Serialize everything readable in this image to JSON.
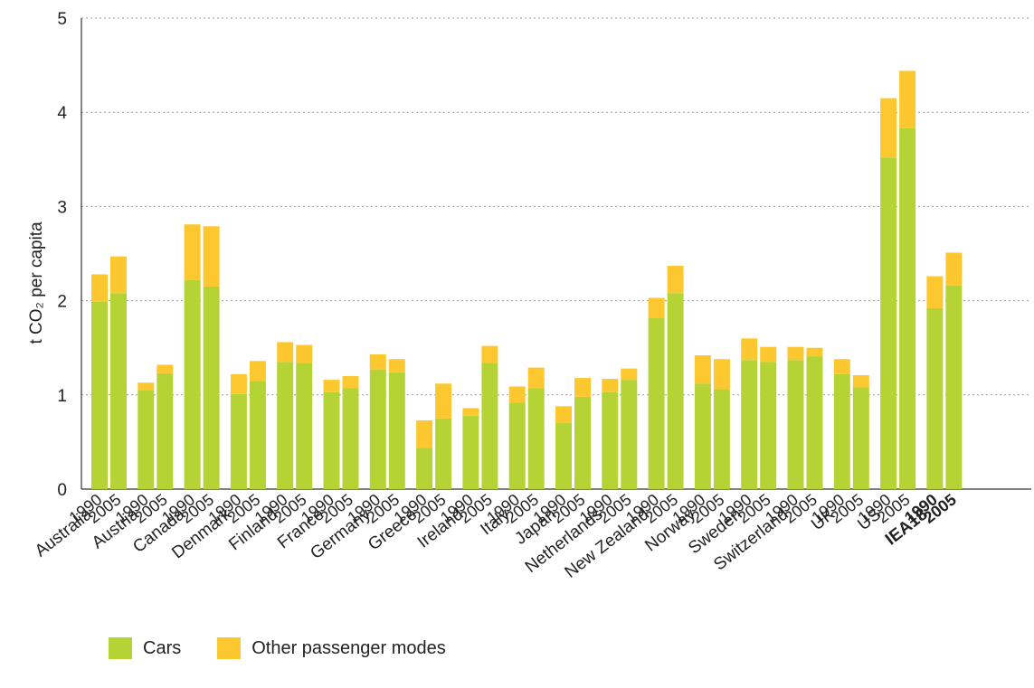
{
  "chart_data": {
    "type": "bar",
    "stacked": true,
    "ylabel": "t CO₂ per capita",
    "ylim": [
      0,
      5
    ],
    "yticks": [
      0,
      1,
      2,
      3,
      4,
      5
    ],
    "grid": true,
    "legend_position": "bottom-left",
    "colors": {
      "Cars": "#b5d334",
      "Other passenger modes": "#fdc82f"
    },
    "countries": [
      {
        "name": "Australia",
        "bold": false,
        "values": {
          "1990": [
            1.99,
            0.29
          ],
          "2005": [
            2.08,
            0.39
          ]
        }
      },
      {
        "name": "Austria",
        "bold": false,
        "values": {
          "1990": [
            1.05,
            0.08
          ],
          "2005": [
            1.23,
            0.09
          ]
        }
      },
      {
        "name": "Canada",
        "bold": false,
        "values": {
          "1990": [
            2.22,
            0.59
          ],
          "2005": [
            2.15,
            0.64
          ]
        }
      },
      {
        "name": "Denmark",
        "bold": false,
        "values": {
          "1990": [
            1.01,
            0.21
          ],
          "2005": [
            1.15,
            0.21
          ]
        }
      },
      {
        "name": "Finland",
        "bold": false,
        "values": {
          "1990": [
            1.35,
            0.21
          ],
          "2005": [
            1.34,
            0.19
          ]
        }
      },
      {
        "name": "France",
        "bold": false,
        "values": {
          "1990": [
            1.03,
            0.13
          ],
          "2005": [
            1.07,
            0.13
          ]
        }
      },
      {
        "name": "Germany",
        "bold": false,
        "values": {
          "1990": [
            1.27,
            0.16
          ],
          "2005": [
            1.24,
            0.14
          ]
        }
      },
      {
        "name": "Greece",
        "bold": false,
        "values": {
          "1990": [
            0.44,
            0.29
          ],
          "2005": [
            0.75,
            0.37
          ]
        }
      },
      {
        "name": "Ireland",
        "bold": false,
        "values": {
          "1990": [
            0.78,
            0.08
          ],
          "2005": [
            1.34,
            0.18
          ]
        }
      },
      {
        "name": "Italy",
        "bold": false,
        "values": {
          "1990": [
            0.92,
            0.17
          ],
          "2005": [
            1.07,
            0.22
          ]
        }
      },
      {
        "name": "Japan",
        "bold": false,
        "values": {
          "1990": [
            0.7,
            0.18
          ],
          "2005": [
            0.98,
            0.2
          ]
        }
      },
      {
        "name": "Netherlands",
        "bold": false,
        "values": {
          "1990": [
            1.03,
            0.14
          ],
          "2005": [
            1.16,
            0.12
          ]
        }
      },
      {
        "name": "New Zealand",
        "bold": false,
        "values": {
          "1990": [
            1.82,
            0.21
          ],
          "2005": [
            2.08,
            0.29
          ]
        }
      },
      {
        "name": "Norway",
        "bold": false,
        "values": {
          "1990": [
            1.12,
            0.3
          ],
          "2005": [
            1.06,
            0.32
          ]
        }
      },
      {
        "name": "Sweden",
        "bold": false,
        "values": {
          "1990": [
            1.37,
            0.23
          ],
          "2005": [
            1.35,
            0.16
          ]
        }
      },
      {
        "name": "Switzerland",
        "bold": false,
        "values": {
          "1990": [
            1.37,
            0.14
          ],
          "2005": [
            1.41,
            0.09
          ]
        }
      },
      {
        "name": "UK",
        "bold": false,
        "values": {
          "1990": [
            1.22,
            0.16
          ],
          "2005": [
            1.08,
            0.13
          ]
        }
      },
      {
        "name": "US",
        "bold": false,
        "values": {
          "1990": [
            3.52,
            0.63
          ],
          "2005": [
            3.83,
            0.61
          ]
        }
      },
      {
        "name": "IEA18",
        "bold": true,
        "values": {
          "1990": [
            1.92,
            0.34
          ],
          "2005": [
            2.16,
            0.35
          ]
        }
      }
    ],
    "years": [
      "1990",
      "2005"
    ],
    "series": [
      {
        "name": "Cars"
      },
      {
        "name": "Other passenger modes"
      }
    ]
  }
}
